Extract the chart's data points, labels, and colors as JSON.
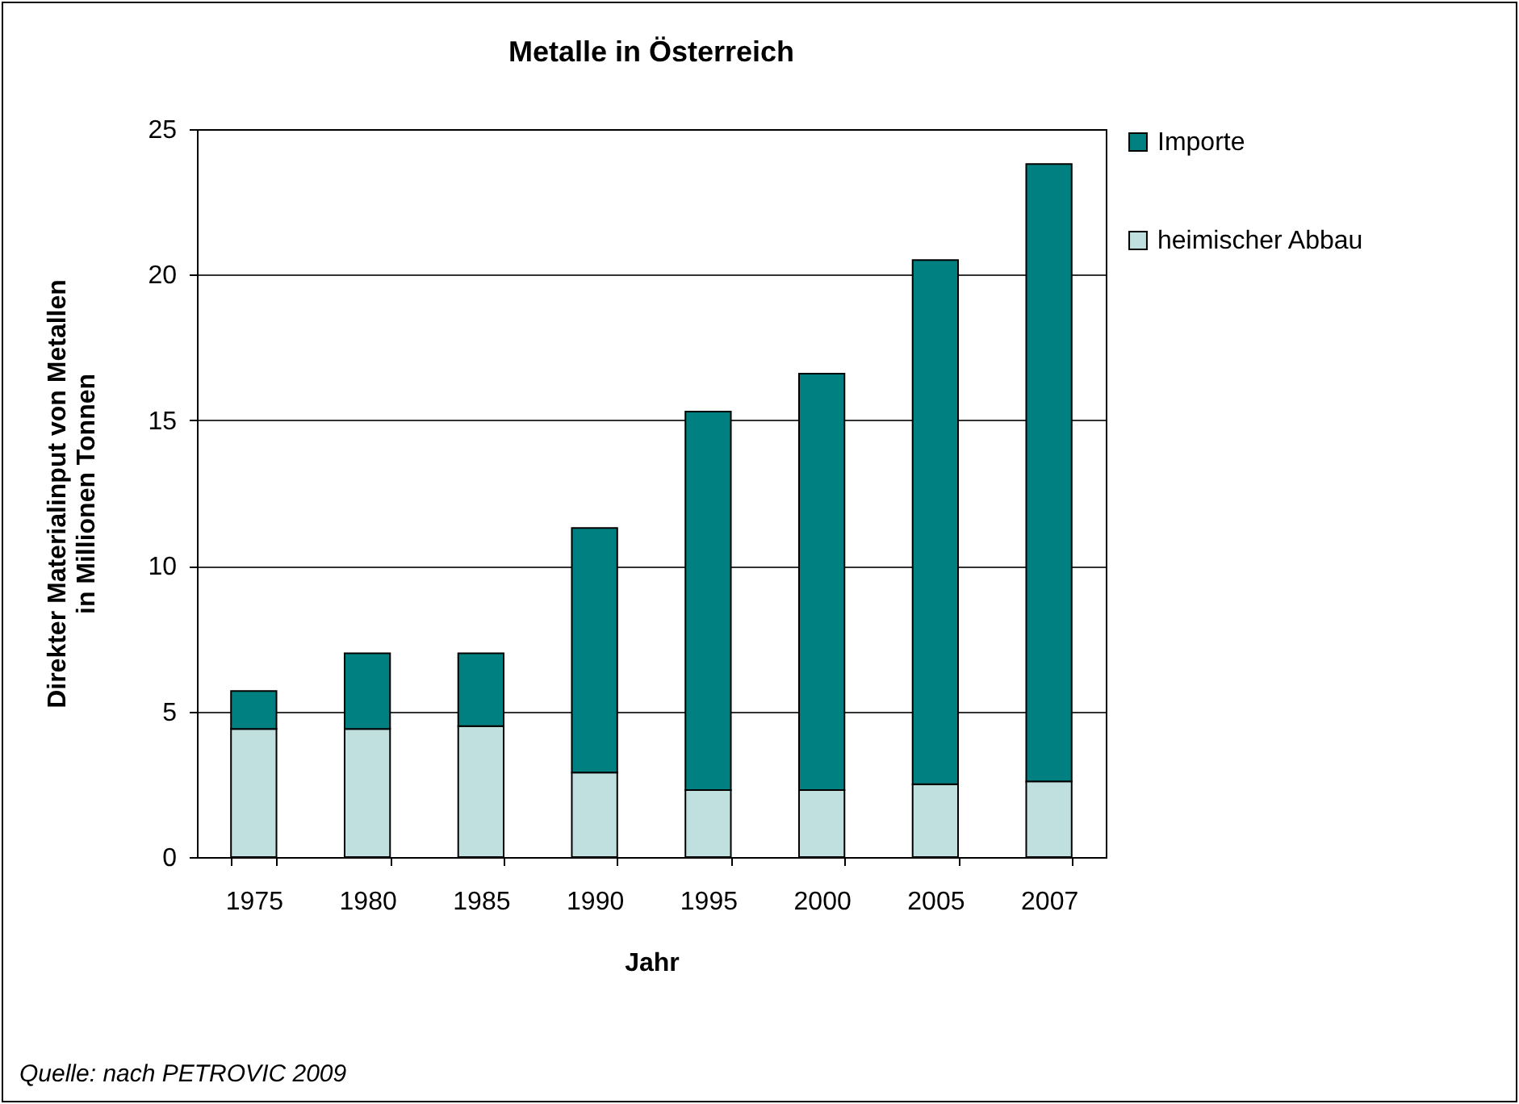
{
  "chart_data": {
    "type": "bar",
    "title": "Metalle in Österreich",
    "xlabel": "Jahr",
    "ylabel": "Direkter Materialinput von Metallen\nin Millionen Tonnen",
    "categories": [
      "1975",
      "1980",
      "1985",
      "1990",
      "1995",
      "2000",
      "2005",
      "2007"
    ],
    "series": [
      {
        "name": "heimischer Abbau",
        "color": "#c0e0e0",
        "values": [
          4.4,
          4.4,
          4.5,
          2.9,
          2.3,
          2.3,
          2.5,
          2.6
        ]
      },
      {
        "name": "Importe",
        "color": "#008080",
        "values": [
          1.3,
          2.6,
          2.5,
          8.4,
          13.0,
          14.3,
          18.0,
          21.2
        ]
      }
    ],
    "stacked": true,
    "ylim": [
      0,
      25
    ],
    "yticks": [
      0,
      5,
      10,
      15,
      20,
      25
    ],
    "grid": "y",
    "legend": "right",
    "annotations": [
      "Quelle: nach PETROVIC 2009"
    ]
  }
}
